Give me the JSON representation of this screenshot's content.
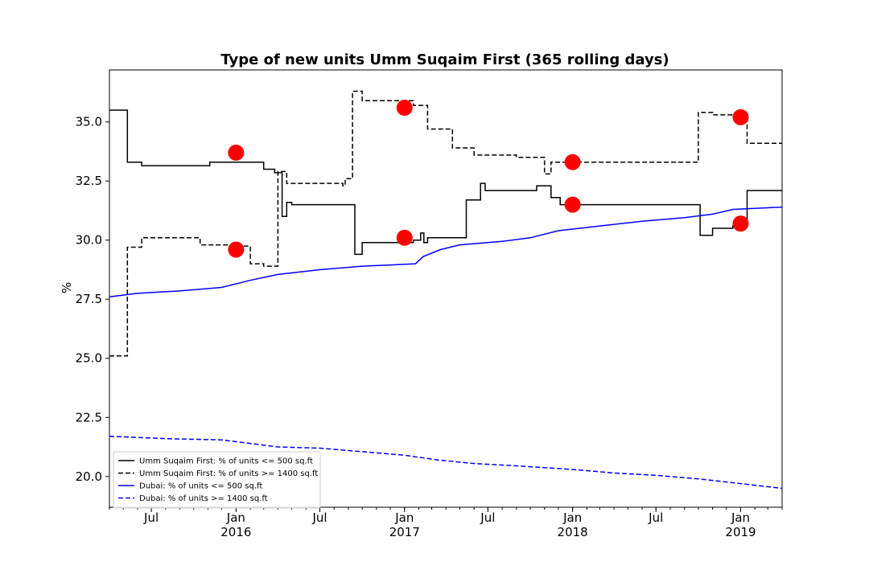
{
  "chart_data": {
    "type": "line",
    "title": "Type of new units Umm Suqaim First (365 rolling days)",
    "xlabel": "",
    "ylabel": "%",
    "xlim": [
      "2015-04-01",
      "2019-04-01"
    ],
    "ylim": [
      18.7,
      37.2
    ],
    "yticks": [
      20.0,
      22.5,
      25.0,
      27.5,
      30.0,
      32.5,
      35.0
    ],
    "ytick_labels": [
      "20.0",
      "22.5",
      "25.0",
      "27.5",
      "30.0",
      "32.5",
      "35.0"
    ],
    "xticks": [
      {
        "date": "2015-07-01",
        "label": "Jul",
        "sub": ""
      },
      {
        "date": "2016-01-01",
        "label": "Jan",
        "sub": "2016"
      },
      {
        "date": "2016-07-01",
        "label": "Jul",
        "sub": ""
      },
      {
        "date": "2017-01-01",
        "label": "Jan",
        "sub": "2017"
      },
      {
        "date": "2017-07-01",
        "label": "Jul",
        "sub": ""
      },
      {
        "date": "2018-01-01",
        "label": "Jan",
        "sub": "2018"
      },
      {
        "date": "2018-07-01",
        "label": "Jul",
        "sub": ""
      },
      {
        "date": "2019-01-01",
        "label": "Jan",
        "sub": "2019"
      }
    ],
    "grid": false,
    "legend_position": "lower-left",
    "series": [
      {
        "name": "Umm Suqaim First: % of units <= 500 sq.ft",
        "color": "#000000",
        "dash": "solid",
        "step": true,
        "points": [
          [
            "2015-04-01",
            35.5
          ],
          [
            "2015-05-10",
            33.3
          ],
          [
            "2015-06-10",
            33.15
          ],
          [
            "2015-11-05",
            33.3
          ],
          [
            "2016-03-01",
            33.0
          ],
          [
            "2016-03-25",
            32.85
          ],
          [
            "2016-04-10",
            31.0
          ],
          [
            "2016-04-20",
            31.6
          ],
          [
            "2016-05-01",
            31.5
          ],
          [
            "2016-09-15",
            29.4
          ],
          [
            "2016-10-01",
            29.9
          ],
          [
            "2017-01-20",
            30.0
          ],
          [
            "2017-02-05",
            30.3
          ],
          [
            "2017-02-12",
            29.9
          ],
          [
            "2017-02-20",
            30.1
          ],
          [
            "2017-05-15",
            31.7
          ],
          [
            "2017-06-15",
            32.4
          ],
          [
            "2017-06-25",
            32.1
          ],
          [
            "2017-10-15",
            32.3
          ],
          [
            "2017-11-15",
            31.8
          ],
          [
            "2017-12-05",
            31.5
          ],
          [
            "2018-10-05",
            30.2
          ],
          [
            "2018-11-01",
            30.5
          ],
          [
            "2018-12-15",
            30.6
          ],
          [
            "2019-01-15",
            32.1
          ],
          [
            "2019-04-01",
            32.1
          ]
        ]
      },
      {
        "name": "Umm Suqaim First: % of units >= 1400 sq.ft",
        "color": "#000000",
        "dash": "dashed",
        "step": true,
        "points": [
          [
            "2015-04-01",
            25.1
          ],
          [
            "2015-05-10",
            29.7
          ],
          [
            "2015-06-10",
            30.1
          ],
          [
            "2015-10-15",
            29.8
          ],
          [
            "2016-01-01",
            29.75
          ],
          [
            "2016-02-01",
            29.0
          ],
          [
            "2016-03-01",
            28.9
          ],
          [
            "2016-04-01",
            32.9
          ],
          [
            "2016-04-20",
            32.4
          ],
          [
            "2016-08-20",
            32.3
          ],
          [
            "2016-08-25",
            32.6
          ],
          [
            "2016-09-10",
            36.3
          ],
          [
            "2016-10-01",
            35.9
          ],
          [
            "2017-01-20",
            35.7
          ],
          [
            "2017-02-20",
            34.7
          ],
          [
            "2017-04-15",
            33.9
          ],
          [
            "2017-06-01",
            33.6
          ],
          [
            "2017-09-01",
            33.5
          ],
          [
            "2017-11-01",
            32.8
          ],
          [
            "2017-11-15",
            33.3
          ],
          [
            "2018-10-01",
            35.4
          ],
          [
            "2018-11-01",
            35.3
          ],
          [
            "2019-01-01",
            35.1
          ],
          [
            "2019-01-15",
            34.1
          ],
          [
            "2019-04-01",
            34.1
          ]
        ]
      },
      {
        "name": "Dubai: % of units <= 500 sq.ft",
        "color": "#0000ff",
        "dash": "solid",
        "step": false,
        "points": [
          [
            "2015-04-01",
            27.6
          ],
          [
            "2015-06-01",
            27.75
          ],
          [
            "2015-09-01",
            27.85
          ],
          [
            "2015-12-01",
            28.0
          ],
          [
            "2016-02-01",
            28.3
          ],
          [
            "2016-04-01",
            28.55
          ],
          [
            "2016-07-01",
            28.75
          ],
          [
            "2016-10-01",
            28.9
          ],
          [
            "2016-12-01",
            28.95
          ],
          [
            "2017-01-25",
            29.0
          ],
          [
            "2017-02-10",
            29.3
          ],
          [
            "2017-03-20",
            29.6
          ],
          [
            "2017-05-01",
            29.8
          ],
          [
            "2017-08-01",
            29.95
          ],
          [
            "2017-10-01",
            30.1
          ],
          [
            "2017-12-01",
            30.4
          ],
          [
            "2018-03-01",
            30.6
          ],
          [
            "2018-06-01",
            30.8
          ],
          [
            "2018-09-01",
            30.95
          ],
          [
            "2018-11-01",
            31.1
          ],
          [
            "2018-12-15",
            31.3
          ],
          [
            "2019-04-01",
            31.4
          ]
        ]
      },
      {
        "name": "Dubai: % of units >= 1400 sq.ft",
        "color": "#0000ff",
        "dash": "dashed",
        "step": false,
        "points": [
          [
            "2015-04-01",
            21.7
          ],
          [
            "2015-08-01",
            21.6
          ],
          [
            "2015-12-01",
            21.55
          ],
          [
            "2016-02-01",
            21.4
          ],
          [
            "2016-04-01",
            21.25
          ],
          [
            "2016-07-01",
            21.2
          ],
          [
            "2016-10-01",
            21.05
          ],
          [
            "2017-01-01",
            20.9
          ],
          [
            "2017-03-15",
            20.7
          ],
          [
            "2017-06-01",
            20.55
          ],
          [
            "2017-09-01",
            20.45
          ],
          [
            "2018-01-01",
            20.3
          ],
          [
            "2018-04-01",
            20.15
          ],
          [
            "2018-07-01",
            20.05
          ],
          [
            "2018-10-01",
            19.9
          ],
          [
            "2019-01-01",
            19.7
          ],
          [
            "2019-04-01",
            19.5
          ]
        ]
      }
    ],
    "markers": {
      "color": "#ff0000",
      "points": [
        [
          "2016-01-01",
          33.7
        ],
        [
          "2016-01-01",
          29.6
        ],
        [
          "2017-01-01",
          35.6
        ],
        [
          "2017-01-01",
          30.1
        ],
        [
          "2018-01-01",
          33.3
        ],
        [
          "2018-01-01",
          31.5
        ],
        [
          "2019-01-01",
          35.2
        ],
        [
          "2019-01-01",
          30.7
        ]
      ]
    }
  }
}
